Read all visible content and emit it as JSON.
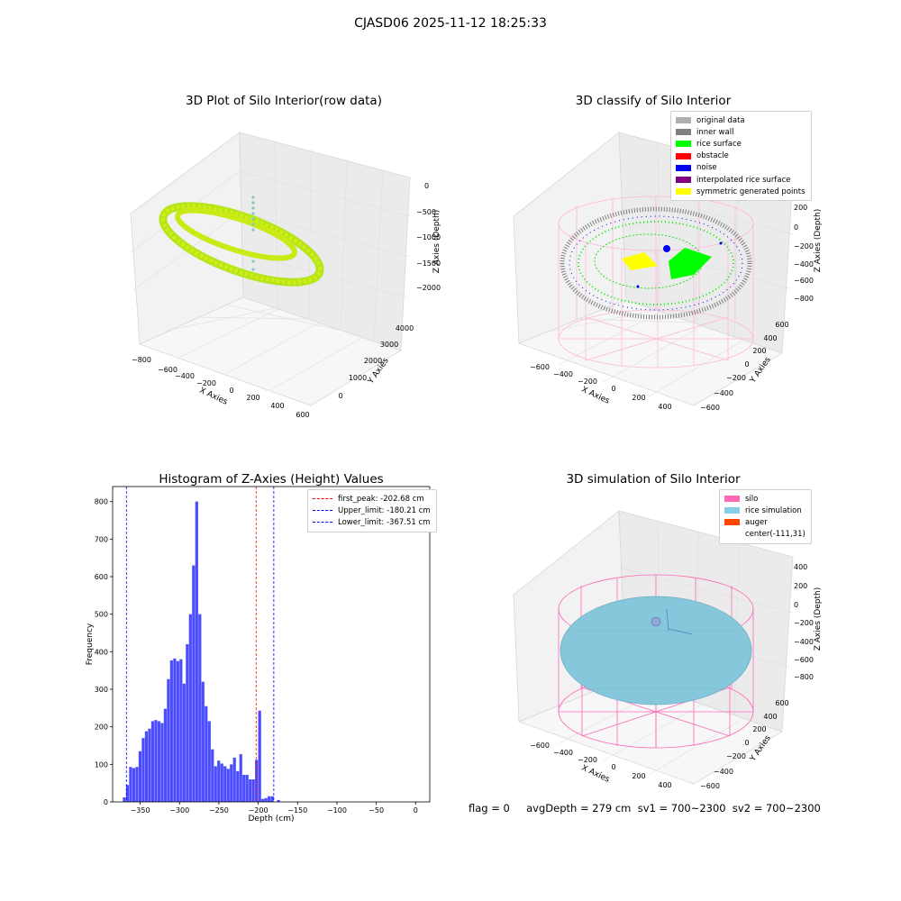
{
  "figure": {
    "suptitle": "CJASD06 2025-11-12 18:25:33"
  },
  "panel1": {
    "title": "3D Plot of Silo Interior(row data)",
    "xlabel": "X Axies",
    "ylabel": "Y Axies",
    "zlabel": "Z Axies (Depth)",
    "xticks": [
      "−800",
      "−600",
      "−400",
      "−200",
      "0",
      "200",
      "400",
      "600"
    ],
    "yticks": [
      "0",
      "1000",
      "2000",
      "3000",
      "4000"
    ],
    "zticks": [
      "0",
      "−500",
      "−1000",
      "−1500",
      "−2000"
    ]
  },
  "panel2": {
    "title": "3D classify of Silo Interior",
    "xlabel": "X Axies",
    "ylabel": "Y Axies",
    "zlabel": "Z Axies (Depth)",
    "xticks": [
      "−600",
      "−400",
      "−200",
      "0",
      "200",
      "400"
    ],
    "yticks": [
      "−600",
      "−400",
      "−200",
      "0",
      "200",
      "400",
      "600"
    ],
    "zticks": [
      "200",
      "0",
      "−200",
      "−400",
      "−600",
      "−800"
    ],
    "legend": [
      {
        "label": "original data",
        "color": "#b0b0b0"
      },
      {
        "label": "inner wall",
        "color": "#808080"
      },
      {
        "label": "rice surface",
        "color": "#00ff00"
      },
      {
        "label": "obstacle",
        "color": "#ff0000"
      },
      {
        "label": "noise",
        "color": "#0000ee"
      },
      {
        "label": "interpolated rice surface",
        "color": "#800080"
      },
      {
        "label": "symmetric generated points",
        "color": "#ffff00"
      }
    ]
  },
  "panel4": {
    "title": "3D simulation of Silo Interior",
    "xlabel": "X Axies",
    "ylabel": "Y Axies",
    "zlabel": "Z Axies (Depth)",
    "xticks": [
      "−600",
      "−400",
      "−200",
      "0",
      "200",
      "400"
    ],
    "yticks": [
      "−600",
      "−400",
      "−200",
      "0",
      "200",
      "400",
      "600"
    ],
    "zticks": [
      "400",
      "200",
      "0",
      "−200",
      "−400",
      "−600",
      "−800"
    ],
    "legend": [
      {
        "label": "silo",
        "color": "#ff69b4"
      },
      {
        "label": "rice simulation",
        "color": "#87ceeb"
      },
      {
        "label": "auger",
        "color": "#ff4500"
      },
      {
        "label": "center(-111,31)",
        "color": ""
      }
    ]
  },
  "footer": {
    "text": "flag = 0     avgDepth = 279 cm  sv1 = 700~2300  sv2 = 700~2300"
  },
  "chart_data": {
    "type": "bar",
    "title": "Histogram of Z-Axies (Height) Values",
    "xlabel": "Depth (cm)",
    "ylabel": "Frequency",
    "xlim": [
      -385,
      18
    ],
    "ylim": [
      0,
      840
    ],
    "xticks": [
      -350,
      -300,
      -250,
      -200,
      -150,
      -100,
      -50,
      0
    ],
    "yticks": [
      0,
      100,
      200,
      300,
      400,
      500,
      600,
      700,
      800
    ],
    "bar_color": "#0000ff",
    "bin_start": -372,
    "bin_width": 4,
    "values": [
      12,
      45,
      93,
      90,
      93,
      135,
      170,
      188,
      195,
      215,
      218,
      215,
      210,
      248,
      327,
      377,
      382,
      375,
      380,
      315,
      420,
      500,
      630,
      800,
      500,
      320,
      255,
      215,
      140,
      95,
      110,
      102,
      95,
      88,
      100,
      118,
      82,
      127,
      72,
      72,
      60,
      60,
      112,
      243,
      8,
      10,
      15,
      15,
      0,
      5
    ],
    "vlines": [
      {
        "label": "first_peak: -202.68 cm",
        "x": -202.68,
        "color": "#ff0000"
      },
      {
        "label": "Upper_limit: -180.21 cm",
        "x": -180.21,
        "color": "#0000ff"
      },
      {
        "label": "Lower_limit: -367.51 cm",
        "x": -367.51,
        "color": "#0000ff"
      }
    ]
  }
}
